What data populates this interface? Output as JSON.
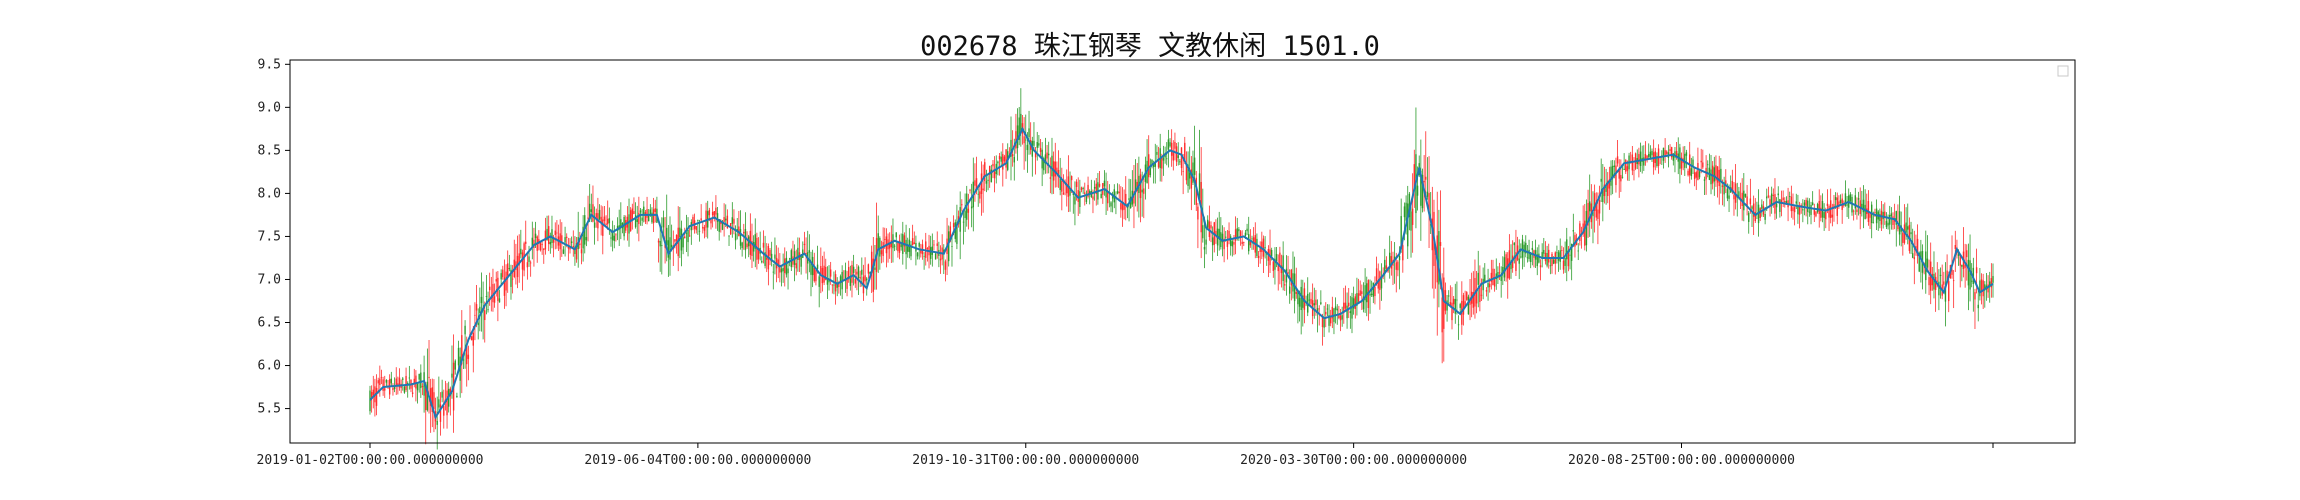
{
  "chart_data": {
    "type": "candlestick",
    "title": "002678 珠江钢琴 文教休闲 1501.0",
    "ylim": [
      5.1,
      9.55
    ],
    "yticks": [
      "5.5",
      "6.0",
      "6.5",
      "7.0",
      "7.5",
      "8.0",
      "8.5",
      "9.0",
      "9.5"
    ],
    "xticks": [
      "2019-01-02T00:00:00.000000000",
      "2019-06-04T00:00:00.000000000",
      "2019-10-31T00:00:00.000000000",
      "2020-03-30T00:00:00.000000000",
      "2020-08-25T00:00:00.000000000",
      ""
    ],
    "legend": "top-right (empty)",
    "colors": {
      "up": "#ff2a2a",
      "down": "#2a9a2a",
      "ma": "#1f77b4",
      "axis": "#000000"
    },
    "moving_average_keypoints": [
      [
        0,
        5.6
      ],
      [
        8,
        5.75
      ],
      [
        25,
        5.78
      ],
      [
        33,
        5.82
      ],
      [
        40,
        5.4
      ],
      [
        50,
        5.7
      ],
      [
        60,
        6.3
      ],
      [
        70,
        6.7
      ],
      [
        85,
        7.05
      ],
      [
        100,
        7.4
      ],
      [
        110,
        7.5
      ],
      [
        125,
        7.35
      ],
      [
        135,
        7.75
      ],
      [
        148,
        7.55
      ],
      [
        165,
        7.75
      ],
      [
        175,
        7.75
      ],
      [
        182,
        7.3
      ],
      [
        195,
        7.62
      ],
      [
        210,
        7.72
      ],
      [
        225,
        7.55
      ],
      [
        240,
        7.3
      ],
      [
        250,
        7.15
      ],
      [
        265,
        7.3
      ],
      [
        275,
        7.05
      ],
      [
        285,
        6.95
      ],
      [
        295,
        7.05
      ],
      [
        303,
        6.9
      ],
      [
        310,
        7.35
      ],
      [
        320,
        7.45
      ],
      [
        335,
        7.35
      ],
      [
        350,
        7.3
      ],
      [
        362,
        7.8
      ],
      [
        375,
        8.2
      ],
      [
        388,
        8.35
      ],
      [
        398,
        8.75
      ],
      [
        405,
        8.5
      ],
      [
        418,
        8.25
      ],
      [
        432,
        7.95
      ],
      [
        448,
        8.05
      ],
      [
        462,
        7.85
      ],
      [
        475,
        8.3
      ],
      [
        488,
        8.5
      ],
      [
        495,
        8.45
      ],
      [
        503,
        8.15
      ],
      [
        510,
        7.6
      ],
      [
        520,
        7.45
      ],
      [
        533,
        7.5
      ],
      [
        545,
        7.35
      ],
      [
        558,
        7.1
      ],
      [
        570,
        6.75
      ],
      [
        582,
        6.55
      ],
      [
        592,
        6.6
      ],
      [
        605,
        6.75
      ],
      [
        618,
        7.05
      ],
      [
        628,
        7.3
      ],
      [
        640,
        8.3
      ],
      [
        648,
        7.6
      ],
      [
        655,
        6.75
      ],
      [
        665,
        6.6
      ],
      [
        678,
        6.95
      ],
      [
        690,
        7.05
      ],
      [
        702,
        7.35
      ],
      [
        715,
        7.25
      ],
      [
        728,
        7.25
      ],
      [
        740,
        7.55
      ],
      [
        752,
        8.05
      ],
      [
        765,
        8.35
      ],
      [
        780,
        8.4
      ],
      [
        795,
        8.45
      ],
      [
        808,
        8.3
      ],
      [
        820,
        8.2
      ],
      [
        830,
        8.05
      ],
      [
        845,
        7.75
      ],
      [
        858,
        7.9
      ],
      [
        872,
        7.85
      ],
      [
        888,
        7.8
      ],
      [
        902,
        7.9
      ],
      [
        918,
        7.75
      ],
      [
        930,
        7.7
      ],
      [
        940,
        7.45
      ],
      [
        950,
        7.1
      ],
      [
        960,
        6.85
      ],
      [
        968,
        7.35
      ],
      [
        976,
        7.1
      ],
      [
        982,
        6.85
      ],
      [
        990,
        6.95
      ]
    ]
  }
}
